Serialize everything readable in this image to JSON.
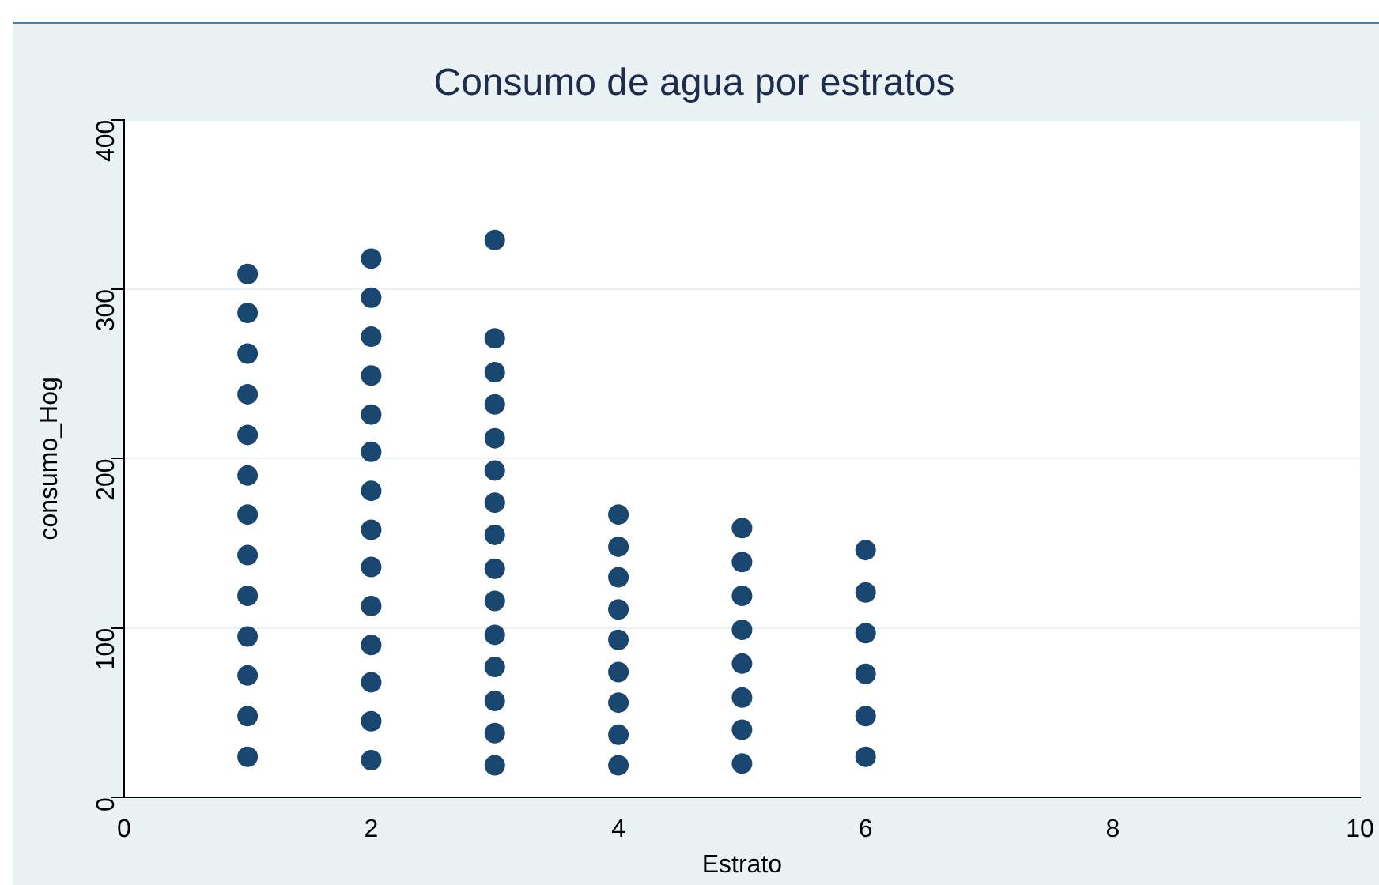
{
  "chart_data": {
    "type": "scatter",
    "title": "Consumo de agua por estratos",
    "xlabel": "Estrato",
    "ylabel": "consumo_Hog",
    "series": [
      {
        "color": "#1a476f",
        "x": [
          1,
          1,
          1,
          1,
          1,
          1,
          1,
          1,
          1,
          1,
          1,
          1,
          1,
          2,
          2,
          2,
          2,
          2,
          2,
          2,
          2,
          2,
          2,
          2,
          2,
          2,
          2,
          3,
          3,
          3,
          3,
          3,
          3,
          3,
          3,
          3,
          3,
          3,
          3,
          3,
          3,
          3,
          4,
          4,
          4,
          4,
          4,
          4,
          4,
          4,
          4,
          5,
          5,
          5,
          5,
          5,
          5,
          5,
          5,
          6,
          6,
          6,
          6,
          6,
          6
        ],
        "values": [
          24,
          48,
          72,
          95,
          119,
          143,
          167,
          190,
          214,
          238,
          262,
          286,
          309,
          22,
          45,
          68,
          90,
          113,
          136,
          158,
          181,
          204,
          226,
          249,
          272,
          295,
          318,
          19,
          38,
          57,
          77,
          96,
          116,
          135,
          155,
          174,
          193,
          212,
          232,
          251,
          271,
          329,
          19,
          37,
          56,
          74,
          93,
          111,
          130,
          148,
          167,
          20,
          40,
          59,
          79,
          99,
          119,
          139,
          159,
          24,
          48,
          73,
          97,
          121,
          146
        ]
      }
    ],
    "xlim": [
      0,
      10
    ],
    "xticks": [
      0,
      2,
      4,
      6,
      8,
      10
    ],
    "ylim": [
      0,
      400
    ],
    "yticks": [
      0,
      100,
      200,
      300,
      400
    ],
    "grid": "y",
    "marker": "circle",
    "legend": false
  }
}
